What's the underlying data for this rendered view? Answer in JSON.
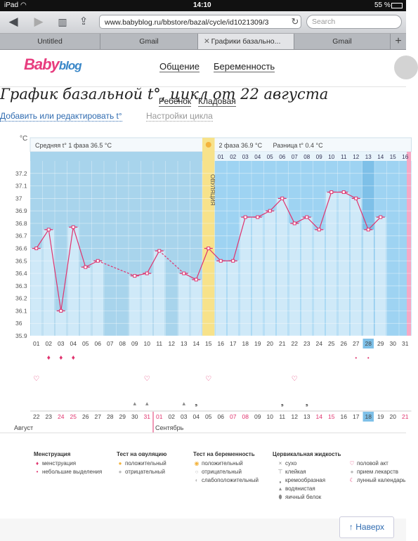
{
  "status": {
    "device": "iPad",
    "time": "14:10",
    "battery": "55 %"
  },
  "browser": {
    "url": "www.babyblog.ru/bbstore/bazal/cycle/id1021309/3",
    "search_placeholder": "Search",
    "tabs": [
      {
        "label": "Untitled"
      },
      {
        "label": "Gmail"
      },
      {
        "label": "Графики базально..."
      },
      {
        "label": "Gmail"
      }
    ]
  },
  "site": {
    "logo_main": "Baby",
    "logo_blog": "blog",
    "nav": [
      "Общение",
      "Беременность",
      "Ребёнок",
      "Кладовая"
    ]
  },
  "page": {
    "title": "График базальной t°, цикл от 22 августа",
    "edit_link": "Добавить или редактировать t°",
    "settings_link": "Настройки цикла"
  },
  "chart_data": {
    "type": "line",
    "ylabel": "°C",
    "ylim": [
      35.9,
      37.3
    ],
    "yticks": [
      37.2,
      37.1,
      37,
      36.9,
      36.8,
      36.7,
      36.6,
      36.5,
      36.4,
      36.3,
      36.2,
      36.1,
      36,
      35.9
    ],
    "phase1_label": "Средняя t° 1 фаза 36.5 °C",
    "phase2_label": "2 фаза 36.9 °C",
    "diff_label": "Разница t° 0.4 °C",
    "ovulation_label": "ОВУЛЯЦИЯ",
    "ovulation_day": 15,
    "cycle_days": [
      "01",
      "02",
      "03",
      "04",
      "05",
      "06",
      "07",
      "08",
      "09",
      "10",
      "11",
      "12",
      "13",
      "14",
      "15",
      "16",
      "17",
      "18",
      "19",
      "20",
      "21",
      "22",
      "23",
      "24",
      "25",
      "26",
      "27",
      "28",
      "29",
      "30",
      "31"
    ],
    "phase2_days": [
      "01",
      "02",
      "03",
      "04",
      "05",
      "06",
      "07",
      "08",
      "09",
      "10",
      "11",
      "12",
      "13",
      "14",
      "15",
      "16"
    ],
    "temps": [
      36.6,
      36.75,
      36.1,
      36.77,
      36.45,
      36.5,
      null,
      null,
      36.38,
      36.4,
      36.58,
      null,
      36.4,
      36.35,
      36.6,
      36.5,
      36.5,
      36.85,
      36.85,
      36.9,
      37.0,
      36.8,
      36.85,
      36.75,
      37.05,
      37.05,
      37.0,
      36.75,
      36.85,
      null,
      null
    ],
    "highlight_day": "28",
    "dates": [
      "22",
      "23",
      "24",
      "25",
      "26",
      "27",
      "28",
      "29",
      "30",
      "31",
      "01",
      "02",
      "03",
      "04",
      "05",
      "06",
      "07",
      "08",
      "09",
      "10",
      "11",
      "12",
      "13",
      "14",
      "15",
      "16",
      "17",
      "18",
      "19",
      "20",
      "21"
    ],
    "red_dates": [
      2,
      3,
      9,
      10,
      16,
      17,
      23,
      24,
      30
    ],
    "highlight_date": "18",
    "month1": "Август",
    "month2": "Сентябрь"
  },
  "legend": {
    "menstruation_title": "Менструация",
    "menstruation": [
      "менструация",
      "небольшие выделения"
    ],
    "ovulation_title": "Тест на овуляцию",
    "ovulation": [
      "положительный",
      "отрицательный"
    ],
    "pregnancy_title": "Тест на беременность",
    "pregnancy": [
      "положительный",
      "отрицательный",
      "слабоположительный"
    ],
    "cervical_title": "Цервикальная жидкость",
    "cervical": [
      "сухо",
      "клейкая",
      "кремообразная",
      "водянистая",
      "яичный белок"
    ],
    "other": [
      "половой акт",
      "прием лекарств",
      "лунный календарь"
    ]
  },
  "back_to_top": "↑ Наверх",
  "colors": {
    "phase1": "#a8d4ec",
    "phase2": "#9ed3f2",
    "bar": "#cfe9f8",
    "line": "#e0336e",
    "ovulation": "#f7e28a"
  }
}
